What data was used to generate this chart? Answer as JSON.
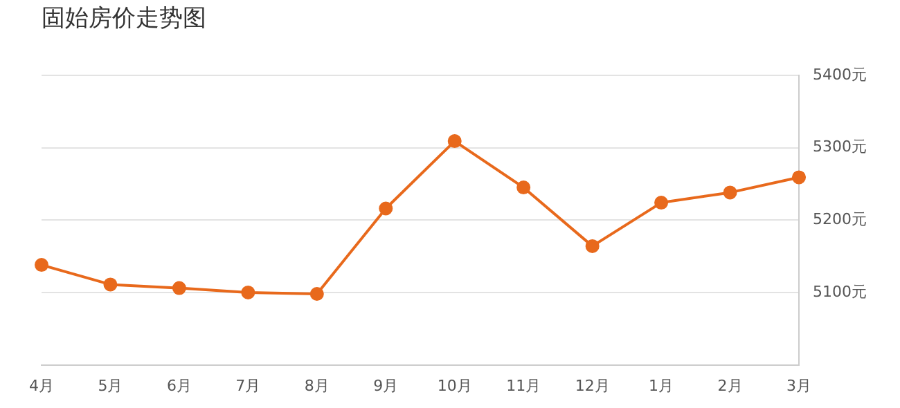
{
  "chart_data": {
    "type": "line",
    "title": "固始房价走势图",
    "categories": [
      "4月",
      "5月",
      "6月",
      "7月",
      "8月",
      "9月",
      "10月",
      "11月",
      "12月",
      "1月",
      "2月",
      "3月"
    ],
    "series": [
      {
        "color": "#e8691c",
        "values": [
          5138,
          5111,
          5106,
          5100,
          5098,
          5216,
          5309,
          5245,
          5164,
          5224,
          5238,
          5259
        ]
      }
    ],
    "ylim": [
      5000,
      5400
    ],
    "yticks": [
      {
        "value": 5000,
        "label": null
      },
      {
        "value": 5100,
        "label": "5100元"
      },
      {
        "value": 5200,
        "label": "5200元"
      },
      {
        "value": 5300,
        "label": "5300元"
      },
      {
        "value": 5400,
        "label": "5400元"
      }
    ],
    "grid": "y",
    "legend": false,
    "marker": "circle",
    "line_style": "solid"
  }
}
